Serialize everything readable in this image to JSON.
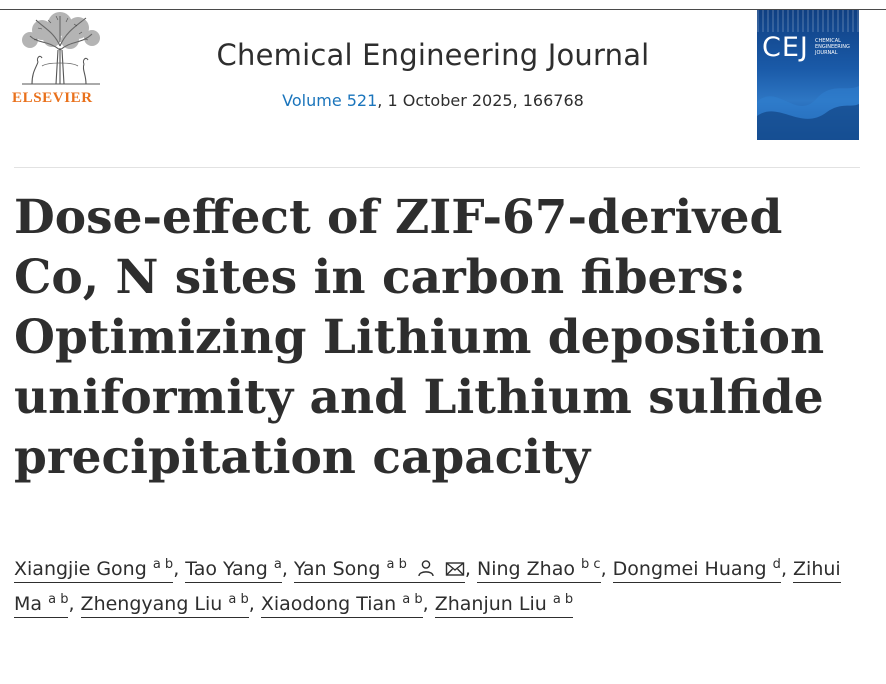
{
  "publisher": {
    "name": "ELSEVIER"
  },
  "journal": {
    "title": "Chemical Engineering Journal",
    "volume_link": "Volume 521",
    "issue_rest": ", 1 October 2025, 166768",
    "cover_abbr": "CEJ",
    "cover_name": "Chemical Engineering Journal"
  },
  "article": {
    "title": "Dose-effect of ZIF-67-derived Co, N sites in carbon fibers: Optimizing Lithium deposition uniformity and Lithium sulfide precipitation capacity"
  },
  "authors": [
    {
      "name": "Xiangjie Gong",
      "aff": "a b"
    },
    {
      "name": "Tao Yang",
      "aff": "a"
    },
    {
      "name": "Yan Song",
      "aff": "a b",
      "icons": [
        "person-icon",
        "mail-icon"
      ]
    },
    {
      "name": "Ning Zhao",
      "aff": "b c"
    },
    {
      "name": "Dongmei Huang",
      "aff": "d"
    },
    {
      "name": "Zihui Ma",
      "aff": "a b"
    },
    {
      "name": "Zhengyang Liu",
      "aff": "a b"
    },
    {
      "name": "Xiaodong Tian",
      "aff": "a b"
    },
    {
      "name": "Zhanjun Liu",
      "aff": "a b"
    }
  ],
  "colors": {
    "link": "#1b75bc",
    "elsevier_orange": "#e9711c",
    "text": "#2e2e2e"
  }
}
